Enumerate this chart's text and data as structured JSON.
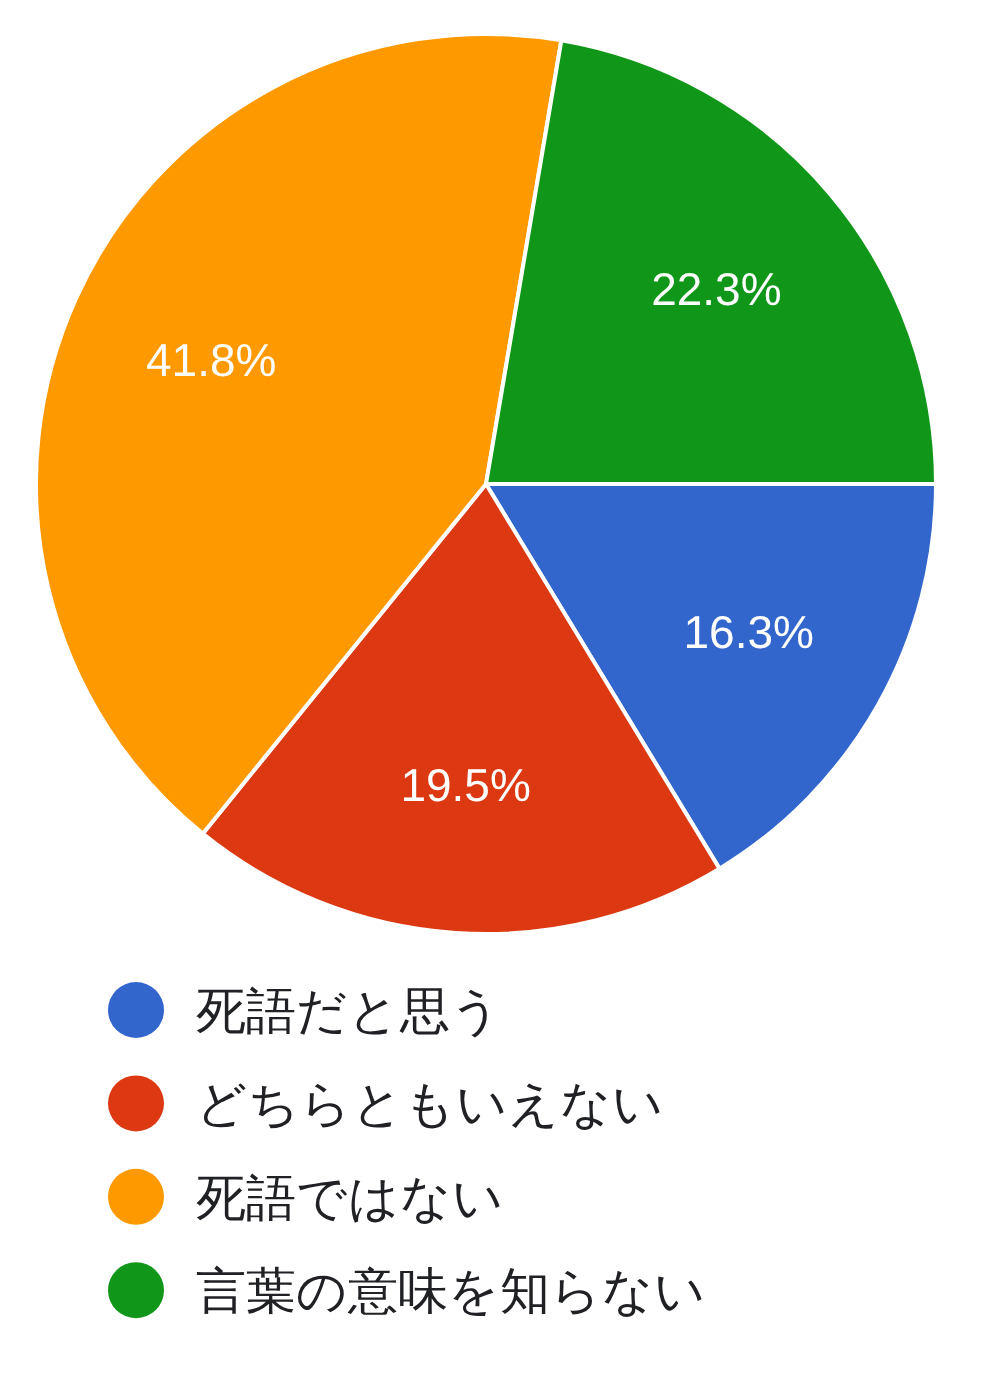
{
  "chart_data": {
    "type": "pie",
    "categories": [
      "死語だと思う",
      "どちらともいえない",
      "死語ではない",
      "言葉の意味を知らない"
    ],
    "values": [
      16.3,
      19.5,
      41.8,
      22.3
    ],
    "value_labels": [
      "16.3%",
      "19.5%",
      "41.8%",
      "22.3%"
    ],
    "colors": [
      "#3366cc",
      "#dc3912",
      "#ff9900",
      "#109618"
    ],
    "legend": "bottom"
  }
}
